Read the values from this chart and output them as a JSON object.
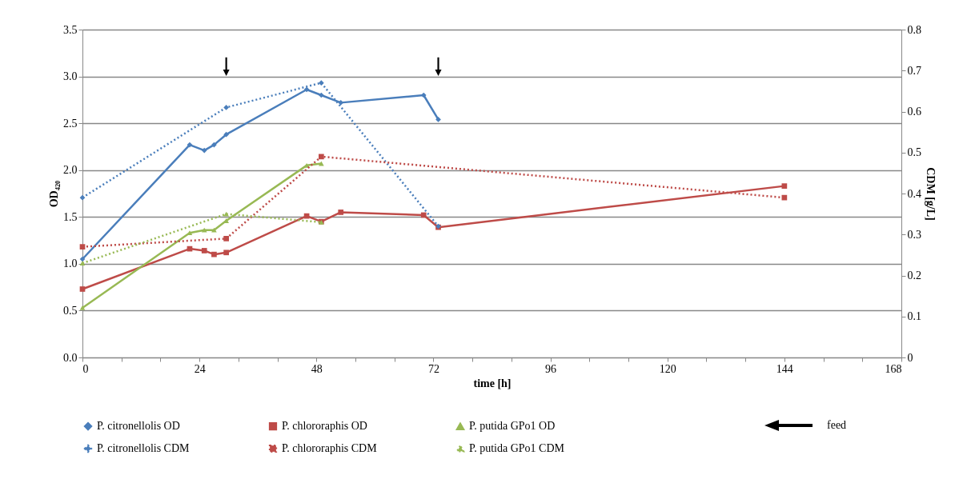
{
  "chart_data": {
    "type": "line",
    "xlabel": "time [h]",
    "ylabel": "OD₄₂₀",
    "y2label": "CDM [g/L]",
    "xlim": [
      0,
      168
    ],
    "xticks": [
      0,
      {
        "value": 8,
        "label": null
      },
      {
        "value": 16,
        "label": null
      },
      24,
      {
        "value": 32,
        "label": null
      },
      {
        "value": 40,
        "label": null
      },
      48,
      {
        "value": 56,
        "label": null
      },
      {
        "value": 64,
        "label": null
      },
      72,
      {
        "value": 80,
        "label": null
      },
      {
        "value": 88,
        "label": null
      },
      96,
      {
        "value": 104,
        "label": null
      },
      {
        "value": 112,
        "label": null
      },
      120,
      {
        "value": 128,
        "label": null
      },
      {
        "value": 136,
        "label": null
      },
      144,
      {
        "value": 152,
        "label": null
      },
      {
        "value": 160,
        "label": null
      },
      168
    ],
    "ylim": [
      0,
      3.5
    ],
    "yticks": [
      {
        "value": 0,
        "label": "0.0"
      },
      0.5,
      {
        "value": 1,
        "label": "1.0"
      },
      1.5,
      {
        "value": 2,
        "label": "2.0"
      },
      2.5,
      {
        "value": 3,
        "label": "3.0"
      },
      3.5
    ],
    "y2lim": [
      0,
      0.8
    ],
    "y2ticks": [
      0,
      0.1,
      0.2,
      0.3,
      0.4,
      0.5,
      0.6,
      0.7,
      0.8
    ],
    "grid": "y",
    "legend": "bottom",
    "annotations": [
      "feed"
    ],
    "series": [
      {
        "name": "P. citronellolis OD",
        "color": "#4a7ebb",
        "marker": "diamond",
        "line_style": "solid",
        "x": [
          0,
          22,
          25,
          27,
          29.5,
          46,
          49,
          53,
          70,
          73
        ],
        "values": [
          1.05,
          2.27,
          2.21,
          2.27,
          2.38,
          2.86,
          2.8,
          2.72,
          2.8,
          2.54
        ]
      },
      {
        "name": "P. chlororaphis OD",
        "color": "#be4b48",
        "marker": "square",
        "line_style": "solid",
        "x": [
          0,
          22,
          25,
          27,
          29.5,
          46,
          49,
          53,
          70,
          73,
          144
        ],
        "values": [
          0.73,
          1.16,
          1.14,
          1.1,
          1.12,
          1.51,
          1.45,
          1.55,
          1.52,
          1.39,
          1.83
        ]
      },
      {
        "name": "P. putida GPo1 OD",
        "color": "#98b954",
        "marker": "triangle",
        "line_style": "solid",
        "x": [
          0,
          22,
          25,
          27,
          29.5,
          46,
          49
        ],
        "values": [
          0.53,
          1.33,
          1.36,
          1.36,
          1.46,
          2.05,
          2.07
        ]
      },
      {
        "name": "P. citronellolis CDM",
        "color": "#4a7ebb",
        "marker": "diamond",
        "line_style": "dotted",
        "axis": "y2",
        "x": [
          0,
          29.5,
          49,
          73
        ],
        "values": [
          0.39,
          0.61,
          0.67,
          0.32
        ]
      },
      {
        "name": "P. chlororaphis CDM",
        "color": "#be4b48",
        "marker": "square",
        "line_style": "dotted",
        "axis": "y2",
        "x": [
          0,
          29.5,
          49,
          144
        ],
        "values": [
          0.27,
          0.29,
          0.49,
          0.39
        ]
      },
      {
        "name": "P. putida GPo1 CDM",
        "color": "#98b954",
        "marker": "triangle",
        "line_style": "dotted",
        "axis": "y2",
        "x": [
          0,
          29.5,
          49
        ],
        "values": [
          0.23,
          0.35,
          0.33
        ]
      }
    ]
  }
}
